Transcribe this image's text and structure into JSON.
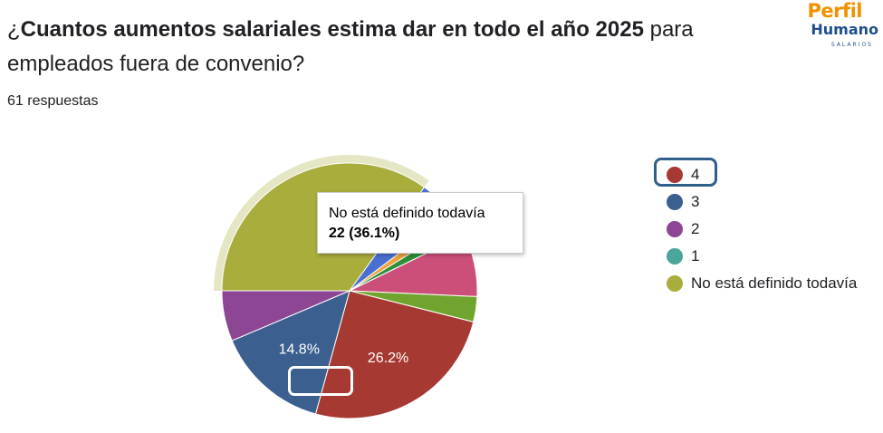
{
  "question": {
    "title_bold": "Cuantos aumentos salariales estima dar en todo el año 2025",
    "title_prefix": "¿",
    "title_rest": " para empleados fuera de convenio?",
    "responses": "61 respuestas"
  },
  "logo": {
    "line1": "Perfil",
    "line2": "Humano",
    "line3": "SALARIOS"
  },
  "tooltip": {
    "label": "No está definido todavía",
    "value": "22 (36.1%)"
  },
  "chart_data": {
    "type": "pie",
    "title": "",
    "slices": [
      {
        "label": "No está definido todavía",
        "percent": 36.1,
        "color": "#a9ad3c",
        "display": ""
      },
      {
        "label": "",
        "percent": 4.9,
        "color": "#4b6fd1",
        "display": ""
      },
      {
        "label": "",
        "percent": 1.6,
        "color": "#f0a23b",
        "display": ""
      },
      {
        "label": "",
        "percent": 1.6,
        "color": "#2f8f3a",
        "display": ""
      },
      {
        "label": "",
        "percent": 8.2,
        "color": "#cc4f7a",
        "display": ""
      },
      {
        "label": "",
        "percent": 3.3,
        "color": "#6fa52f",
        "display": ""
      },
      {
        "label": "4",
        "percent": 26.2,
        "color": "#a63a32",
        "display": "26.2%"
      },
      {
        "label": "3",
        "percent": 14.8,
        "color": "#3b5f8f",
        "display": "14.8%"
      },
      {
        "label": "2",
        "percent": 6.6,
        "color": "#8c4694",
        "display": ""
      }
    ],
    "legend": [
      {
        "label": "4",
        "color": "#a63a32"
      },
      {
        "label": "3",
        "color": "#3b5f8f"
      },
      {
        "label": "2",
        "color": "#8c4694"
      },
      {
        "label": "1",
        "color": "#4aa59a"
      },
      {
        "label": "No está definido todavía",
        "color": "#a9ad3c"
      }
    ],
    "legend_position": "right",
    "highlighted_slice": "No está definido todavía",
    "highlighted_legend": "4"
  }
}
